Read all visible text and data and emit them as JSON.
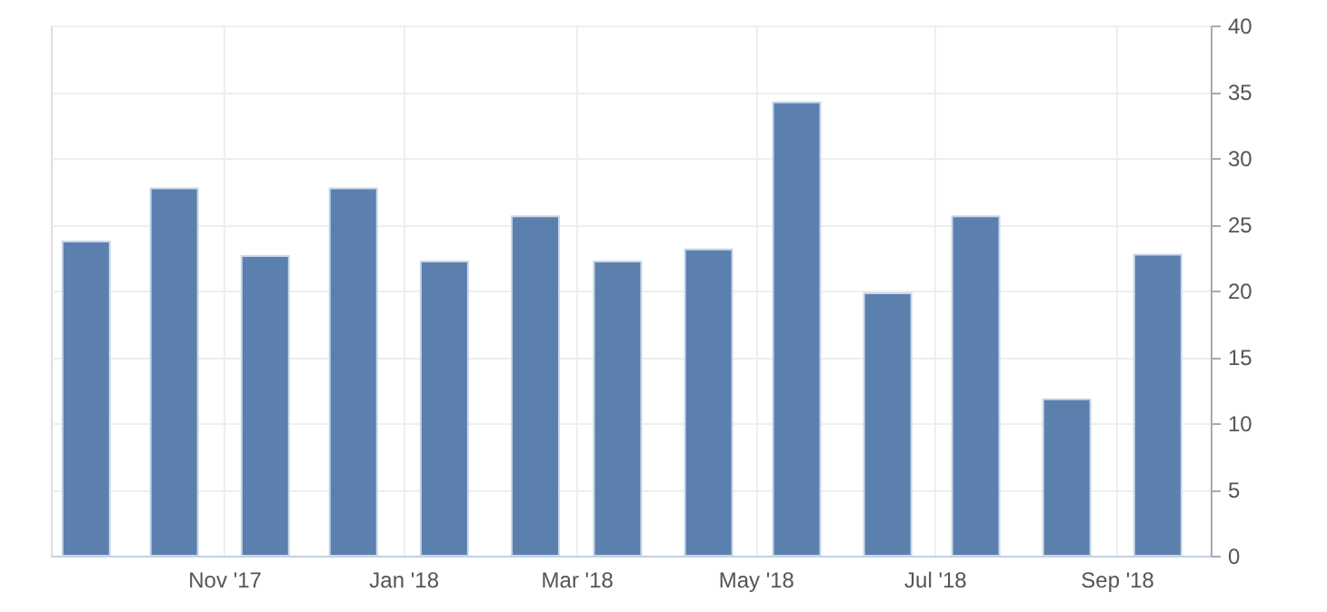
{
  "chart_data": {
    "type": "bar",
    "x": [
      "2017-09-15",
      "2017-10-15",
      "2017-11-15",
      "2017-12-15",
      "2018-01-15",
      "2018-02-15",
      "2018-03-15",
      "2018-04-15",
      "2018-05-15",
      "2018-06-15",
      "2018-07-15",
      "2018-08-15",
      "2018-09-15"
    ],
    "values": [
      23.7,
      27.7,
      22.6,
      27.7,
      22.2,
      25.6,
      22.2,
      23.1,
      34.2,
      19.8,
      25.6,
      11.8,
      22.7
    ],
    "color": "#5b80ae",
    "xlim": [
      "2017-09-03",
      "2018-10-03"
    ],
    "xticks": [
      {
        "value": "2017-11-01",
        "label": "Nov '17"
      },
      {
        "value": "2018-01-01",
        "label": "Jan '18"
      },
      {
        "value": "2018-03-01",
        "label": "Mar '18"
      },
      {
        "value": "2018-05-01",
        "label": "May '18"
      },
      {
        "value": "2018-07-01",
        "label": "Jul '18"
      },
      {
        "value": "2018-09-01",
        "label": "Sep '18"
      }
    ],
    "ylim": [
      0,
      40
    ],
    "yticks": [
      0,
      5,
      10,
      15,
      20,
      25,
      30,
      35,
      40
    ],
    "grid": true
  }
}
